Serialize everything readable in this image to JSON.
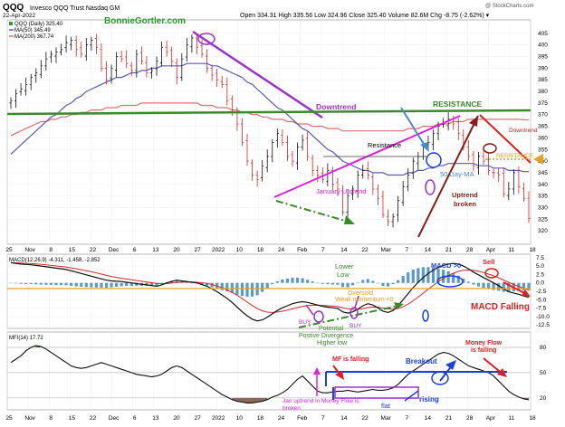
{
  "header": {
    "symbol": "QQQ",
    "name": "Invesco QQQ Trust  Nasdaq GM",
    "date": "22-Apr-2022",
    "ohlc": "Open 334.31  High 335.56  Low 324.96  Close 325.40  Volume 82.6M  Chg -8.75 (-2.62%) ▾",
    "watermark": "@ StockCharts.com",
    "brand": "BonnieGortler.com"
  },
  "colors": {
    "up": "#2a9d2a",
    "down": "#d62828",
    "ma50": "#5a5ab8",
    "ma200": "#e07070",
    "purple": "#9933cc",
    "magenta": "#e020e0",
    "green": "#3a8a2a",
    "maroon": "#8b1a1a",
    "blue": "#1a3fe0",
    "lightblue": "#4a8ad0",
    "red": "#e02020",
    "orange": "#e8a020"
  },
  "chart_data": [
    {
      "type": "candlestick",
      "legend": [
        "QQQ (Daily) 325.40",
        "MA(50) 345.49",
        "MA(200) 367.74"
      ],
      "ylim": [
        315,
        410
      ],
      "yticks": [
        320,
        325,
        330,
        335,
        340,
        345,
        350,
        355,
        360,
        365,
        370,
        375,
        380,
        385,
        390,
        395,
        400,
        405
      ],
      "x_tick_labels": [
        "25",
        "Nov",
        "8",
        "15",
        "22",
        "Dec",
        "6",
        "13",
        "20",
        "27",
        "2022",
        "10",
        "18",
        "24",
        "Feb",
        "7",
        "14",
        "22",
        "Mar",
        "7",
        "14",
        "21",
        "28",
        "Apr",
        "11",
        "18"
      ],
      "closes": [
        376,
        379,
        381,
        383,
        386,
        388,
        391,
        394,
        396,
        397,
        398,
        401,
        402,
        398,
        396,
        400,
        402,
        399,
        390,
        385,
        390,
        395,
        394,
        392,
        389,
        396,
        393,
        388,
        389,
        393,
        399,
        397,
        393,
        386,
        394,
        400,
        403,
        399,
        396,
        390,
        387,
        385,
        383,
        376,
        372,
        366,
        358,
        350,
        344,
        342,
        348,
        352,
        358,
        362,
        358,
        352,
        350,
        356,
        359,
        352,
        346,
        344,
        342,
        346,
        340,
        338,
        328,
        335,
        338,
        344,
        346,
        344,
        338,
        334,
        327,
        324,
        326,
        333,
        339,
        344,
        350,
        352,
        356,
        358,
        362,
        365,
        366,
        368,
        366,
        362,
        356,
        352,
        348,
        352,
        350,
        346,
        345,
        344,
        336,
        338,
        345,
        339,
        334,
        325.4
      ],
      "ma50": [
        353,
        355,
        357,
        359,
        361,
        363,
        365,
        367,
        369,
        370,
        372,
        374,
        375,
        377,
        378,
        380,
        381,
        382,
        383,
        384,
        385,
        386,
        386,
        387,
        388,
        388,
        389,
        389,
        390,
        390,
        391,
        391,
        391,
        391,
        391,
        392,
        392,
        392,
        392,
        392,
        391,
        391,
        390,
        389,
        388,
        387,
        386,
        384,
        383,
        381,
        379,
        377,
        375,
        373,
        372,
        370,
        368,
        366,
        364,
        363,
        361,
        359,
        357,
        355,
        354,
        352,
        350,
        349,
        348,
        347,
        346,
        346,
        345,
        345,
        345,
        344,
        344,
        344,
        344,
        345,
        345,
        346,
        346,
        347,
        347,
        348,
        348,
        349,
        349,
        349,
        349,
        349,
        349,
        348,
        348,
        348,
        347,
        347,
        347,
        346,
        346,
        346,
        345.5,
        345.49
      ],
      "ma200": [
        361,
        362,
        363,
        364,
        365,
        366,
        367,
        367,
        368,
        368,
        369,
        369,
        370,
        370,
        371,
        371,
        372,
        372,
        372,
        373,
        373,
        373,
        374,
        374,
        374,
        374,
        375,
        375,
        375,
        375,
        375,
        375,
        375,
        375,
        375,
        375,
        375,
        375,
        374,
        374,
        374,
        373,
        373,
        373,
        372,
        372,
        371,
        371,
        370,
        370,
        369,
        369,
        368,
        368,
        368,
        367,
        367,
        366,
        366,
        366,
        365,
        365,
        365,
        364,
        364,
        364,
        363,
        363,
        363,
        363,
        363,
        363,
        363,
        363,
        363,
        363,
        363,
        363,
        363,
        364,
        364,
        364,
        365,
        365,
        365,
        366,
        366,
        366,
        367,
        367,
        367,
        368,
        368,
        368,
        368,
        368,
        368,
        368,
        368,
        368,
        368,
        368,
        367.8,
        367.74
      ],
      "levels": {
        "resistance": 370,
        "resistance_short": 348
      },
      "annotations": [
        "Downtrend",
        "RESISTANCE",
        "Resistance",
        "January Uptrend",
        "50 Day-MA",
        "Uptrend broken",
        "Downtrend",
        "RESISTANCE"
      ]
    },
    {
      "type": "macd",
      "legend": "MACD(12,26,9) -4.311, -1.458, -2.852",
      "ylim": [
        -13,
        8
      ],
      "yticks": [
        7.5,
        5.0,
        2.5,
        0.0,
        -2.5,
        -5.0,
        -7.5,
        -10.0,
        -12.5
      ],
      "macd": [
        6,
        5.8,
        5.6,
        5.5,
        5.4,
        5.2,
        5.0,
        4.8,
        4.6,
        4.4,
        4.2,
        4.0,
        3.6,
        3.2,
        2.8,
        2.4,
        2.0,
        1.6,
        1.2,
        0.8,
        0.6,
        0.5,
        0.4,
        0.2,
        0.0,
        -0.2,
        -0.4,
        -0.6,
        -0.8,
        -1.0,
        -0.6,
        0.0,
        0.5,
        0.8,
        0.6,
        0.4,
        0.2,
        0.0,
        -0.5,
        -1.0,
        -1.8,
        -2.6,
        -3.6,
        -4.6,
        -5.8,
        -7.2,
        -8.6,
        -9.8,
        -10.8,
        -11.3,
        -11.0,
        -10.2,
        -9.2,
        -8.2,
        -7.4,
        -6.8,
        -6.2,
        -5.8,
        -5.6,
        -5.8,
        -6.2,
        -6.6,
        -7.0,
        -7.2,
        -7.4,
        -7.6,
        -8.6,
        -9.0,
        -8.6,
        -7.8,
        -6.8,
        -6.2,
        -6.6,
        -7.4,
        -8.4,
        -8.8,
        -8.2,
        -6.8,
        -5.0,
        -3.2,
        -1.4,
        0.2,
        1.6,
        2.8,
        3.8,
        4.6,
        5.2,
        5.6,
        5.8,
        5.6,
        5.0,
        4.2,
        3.2,
        2.4,
        1.6,
        0.8,
        0.0,
        -0.8,
        -1.8,
        -2.6,
        -3.0,
        -3.4,
        -3.9,
        -4.311
      ],
      "annotations": [
        "Lower Low",
        "MACD >0",
        "Sell",
        "Oversold",
        "Weak momentum <0",
        "BUY",
        "BUY",
        "Potential",
        "Postive Divergence",
        "Higher low",
        "MACD Falling"
      ]
    },
    {
      "type": "mfi",
      "legend": "MFI(14) 17.72",
      "ylim": [
        8,
        95
      ],
      "yticks": [
        80,
        50,
        20
      ],
      "mfi": [
        62,
        66,
        70,
        76,
        80,
        82,
        81,
        78,
        74,
        70,
        66,
        62,
        58,
        56,
        55,
        56,
        58,
        60,
        62,
        60,
        58,
        56,
        54,
        52,
        50,
        48,
        47,
        46,
        45,
        46,
        48,
        52,
        56,
        58,
        56,
        52,
        48,
        44,
        40,
        36,
        32,
        28,
        24,
        21,
        18,
        16,
        15,
        14,
        14,
        15,
        16,
        18,
        21,
        23,
        26,
        30,
        36,
        42,
        46,
        40,
        34,
        28,
        26,
        26,
        27,
        28,
        28,
        29,
        28,
        27,
        28,
        29,
        30,
        29,
        29,
        30,
        32,
        36,
        42,
        48,
        52,
        56,
        60,
        64,
        68,
        72,
        74,
        73,
        70,
        66,
        62,
        58,
        56,
        54,
        52,
        50,
        46,
        40,
        34,
        28,
        24,
        21,
        19,
        17.72
      ],
      "annotations": [
        "MF is falling",
        "Breakout",
        "Money Flow is falling",
        "Jan uptrend in Money Flow is broken",
        "flat",
        "rising"
      ]
    }
  ]
}
